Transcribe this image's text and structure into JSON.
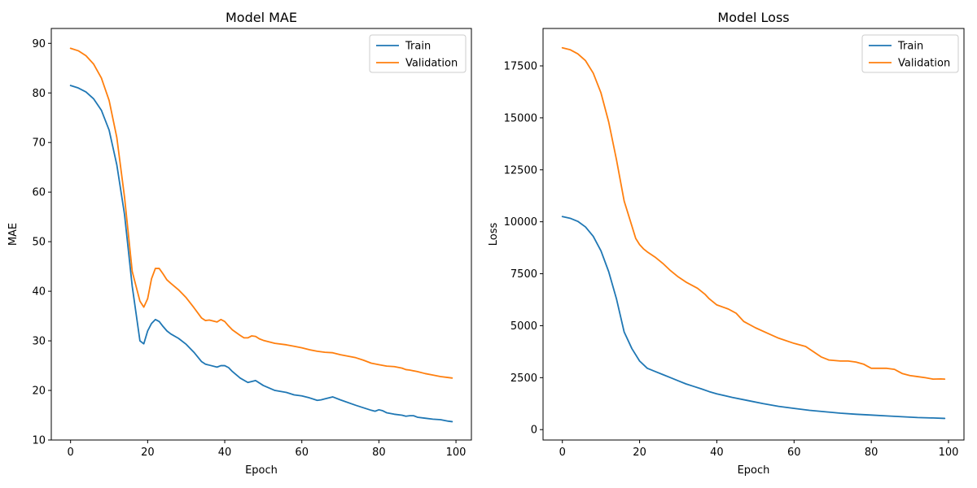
{
  "chart_data": [
    {
      "type": "line",
      "title": "Model MAE",
      "xlabel": "Epoch",
      "ylabel": "MAE",
      "xlim": [
        -5,
        104
      ],
      "ylim": [
        10,
        93
      ],
      "xticks": [
        0,
        20,
        40,
        60,
        80,
        100
      ],
      "yticks": [
        10,
        20,
        30,
        40,
        50,
        60,
        70,
        80,
        90
      ],
      "grid": false,
      "legend_position": "top-right",
      "series": [
        {
          "name": "Train",
          "color": "#1f77b4",
          "x": [
            0,
            2,
            4,
            6,
            8,
            10,
            12,
            14,
            16,
            18,
            19,
            20,
            21,
            22,
            23,
            24,
            25,
            26,
            28,
            30,
            32,
            34,
            35,
            36,
            38,
            39,
            40,
            41,
            42,
            44,
            46,
            48,
            50,
            53,
            56,
            58,
            60,
            62,
            64,
            65,
            66,
            68,
            70,
            74,
            78,
            79,
            80,
            81,
            82,
            84,
            86,
            87,
            88,
            89,
            90,
            92,
            94,
            96,
            98,
            99
          ],
          "y": [
            81.5,
            81,
            80.2,
            78.8,
            76.5,
            72.5,
            65.5,
            55.5,
            41,
            30,
            29.4,
            32,
            33.5,
            34.3,
            33.9,
            32.9,
            32,
            31.4,
            30.5,
            29.3,
            27.7,
            25.8,
            25.3,
            25.1,
            24.7,
            25,
            25,
            24.6,
            23.8,
            22.5,
            21.6,
            22,
            21,
            20,
            19.6,
            19.1,
            18.9,
            18.5,
            18,
            18.1,
            18.3,
            18.7,
            18.1,
            17,
            16,
            15.8,
            16.1,
            15.9,
            15.5,
            15.2,
            15,
            14.8,
            14.9,
            14.9,
            14.6,
            14.4,
            14.2,
            14.1,
            13.8,
            13.7
          ]
        },
        {
          "name": "Validation",
          "color": "#ff7f0e",
          "x": [
            0,
            2,
            4,
            6,
            8,
            10,
            12,
            14,
            16,
            18,
            19,
            20,
            21,
            22,
            23,
            24,
            25,
            26,
            28,
            30,
            32,
            34,
            35,
            36,
            38,
            39,
            40,
            41,
            42,
            44,
            45,
            46,
            47,
            48,
            49,
            50,
            53,
            56,
            58,
            60,
            62,
            64,
            66,
            68,
            70,
            74,
            76,
            78,
            80,
            82,
            84,
            86,
            87,
            88,
            90,
            92,
            94,
            96,
            98,
            99
          ],
          "y": [
            89,
            88.5,
            87.5,
            85.8,
            83,
            78.5,
            71,
            59,
            44,
            38,
            36.8,
            38.5,
            42.5,
            44.6,
            44.6,
            43.5,
            42.3,
            41.6,
            40.3,
            38.7,
            36.7,
            34.6,
            34.1,
            34.2,
            33.8,
            34.3,
            33.9,
            33,
            32.2,
            31.1,
            30.6,
            30.6,
            31,
            30.9,
            30.4,
            30.1,
            29.5,
            29.2,
            28.9,
            28.6,
            28.2,
            27.9,
            27.7,
            27.6,
            27.2,
            26.6,
            26.1,
            25.5,
            25.2,
            24.9,
            24.8,
            24.5,
            24.2,
            24.1,
            23.8,
            23.4,
            23.1,
            22.8,
            22.6,
            22.5
          ]
        }
      ]
    },
    {
      "type": "line",
      "title": "Model Loss",
      "xlabel": "Epoch",
      "ylabel": "Loss",
      "xlim": [
        -5,
        104
      ],
      "ylim": [
        -500,
        19300
      ],
      "xticks": [
        0,
        20,
        40,
        60,
        80,
        100
      ],
      "yticks": [
        0,
        2500,
        5000,
        7500,
        10000,
        12500,
        15000,
        17500
      ],
      "grid": false,
      "legend_position": "top-right",
      "series": [
        {
          "name": "Train",
          "color": "#1f77b4",
          "x": [
            0,
            2,
            4,
            6,
            8,
            10,
            12,
            14,
            16,
            18,
            20,
            22,
            24,
            26,
            28,
            30,
            32,
            34,
            36,
            38,
            40,
            44,
            48,
            52,
            56,
            60,
            64,
            68,
            72,
            76,
            80,
            84,
            88,
            92,
            96,
            99
          ],
          "y": [
            10250,
            10170,
            10020,
            9750,
            9300,
            8600,
            7600,
            6300,
            4700,
            3900,
            3300,
            2950,
            2800,
            2650,
            2500,
            2350,
            2200,
            2080,
            1960,
            1830,
            1720,
            1550,
            1400,
            1250,
            1120,
            1020,
            930,
            860,
            790,
            740,
            700,
            660,
            620,
            580,
            560,
            540
          ]
        },
        {
          "name": "Validation",
          "color": "#ff7f0e",
          "x": [
            0,
            2,
            4,
            6,
            8,
            10,
            12,
            14,
            16,
            18,
            19,
            20,
            21,
            22,
            24,
            26,
            28,
            30,
            32,
            35,
            37,
            38,
            40,
            43,
            45,
            47,
            50,
            53,
            56,
            60,
            63,
            65,
            67,
            69,
            72,
            74,
            76,
            78,
            79,
            80,
            82,
            84,
            86,
            87,
            88,
            90,
            92,
            94,
            96,
            98,
            99
          ],
          "y": [
            18370,
            18280,
            18080,
            17750,
            17150,
            16200,
            14800,
            13000,
            11000,
            9800,
            9200,
            8900,
            8700,
            8550,
            8300,
            8000,
            7650,
            7350,
            7100,
            6800,
            6500,
            6300,
            6000,
            5800,
            5600,
            5200,
            4900,
            4650,
            4400,
            4150,
            4000,
            3750,
            3500,
            3350,
            3300,
            3300,
            3250,
            3150,
            3050,
            2950,
            2950,
            2950,
            2900,
            2800,
            2700,
            2600,
            2550,
            2500,
            2430,
            2440,
            2430
          ]
        }
      ]
    }
  ]
}
